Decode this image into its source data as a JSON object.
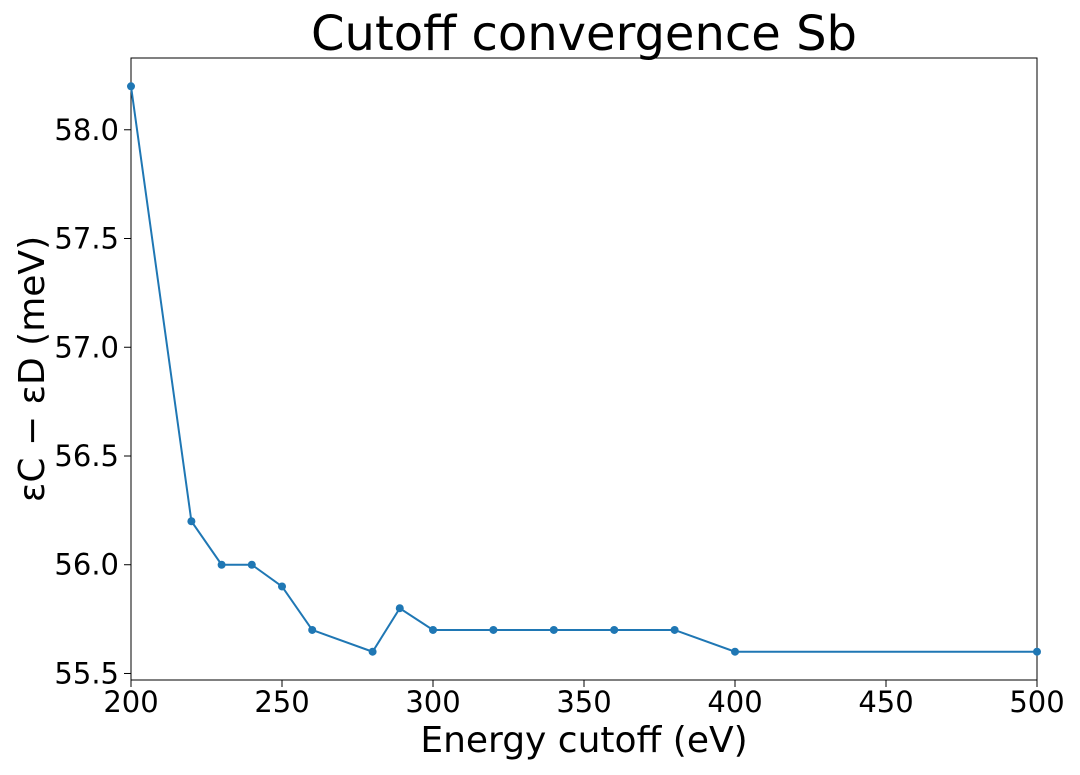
{
  "chart_data": {
    "type": "line",
    "title": "Cutoff convergence Sb",
    "x_label": "Energy cutoff (eV)",
    "y_label": "εC − εD (meV)",
    "x": [
      200,
      220,
      230,
      240,
      250,
      260,
      280,
      289,
      300,
      320,
      340,
      360,
      380,
      400,
      500
    ],
    "series": [
      {
        "name": "Sb",
        "color": "#1f77b4",
        "values": [
          58.2,
          56.2,
          56.0,
          56.0,
          55.9,
          55.7,
          55.6,
          55.8,
          55.7,
          55.7,
          55.7,
          55.7,
          55.7,
          55.6,
          55.6
        ]
      }
    ],
    "xlim": [
      200,
      500
    ],
    "xticks": [
      200,
      250,
      300,
      350,
      400,
      450,
      500
    ],
    "ylim": [
      55.47,
      58.33
    ],
    "yticks": [
      55.5,
      {
        "value": 56,
        "label": "56.0"
      },
      56.5,
      {
        "value": 57,
        "label": "57.0"
      },
      57.5,
      {
        "value": 58,
        "label": "58.0"
      }
    ],
    "grid": false,
    "markers": true
  }
}
